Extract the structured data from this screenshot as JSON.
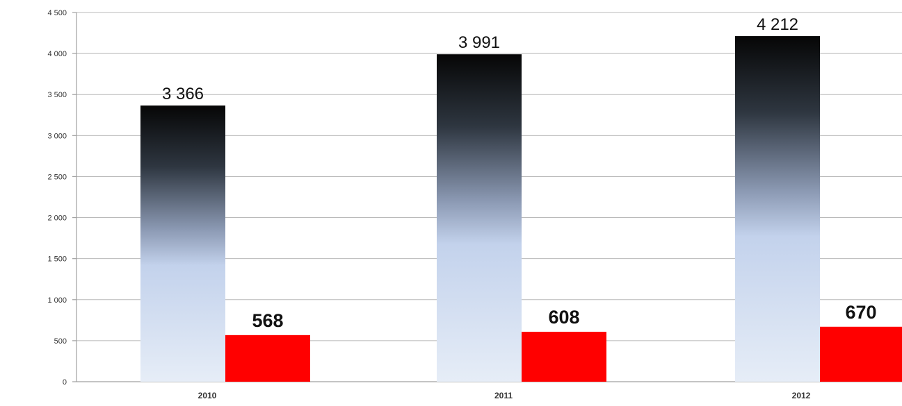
{
  "chart_data": {
    "type": "bar",
    "title": "",
    "xlabel": "",
    "ylabel": "",
    "categories": [
      "2010",
      "2011",
      "2012"
    ],
    "series": [
      {
        "values": [
          3366,
          3991,
          4212
        ],
        "labels": [
          "3 366",
          "3 991",
          "4 212"
        ],
        "style": "gradient-black-to-lightblue"
      },
      {
        "values": [
          568,
          608,
          670
        ],
        "labels": [
          "568",
          "608",
          "670"
        ],
        "color": "#ff0000"
      }
    ],
    "ylim": [
      0,
      4500
    ],
    "yticks": [
      0,
      500,
      1000,
      1500,
      2000,
      2500,
      3000,
      3500,
      4000,
      4500
    ],
    "ytick_labels": [
      "0",
      "500",
      "1 000",
      "1 500",
      "2 000",
      "2 500",
      "3 000",
      "3 500",
      "4 000",
      "4 500"
    ],
    "grid": true,
    "legend": "none"
  }
}
